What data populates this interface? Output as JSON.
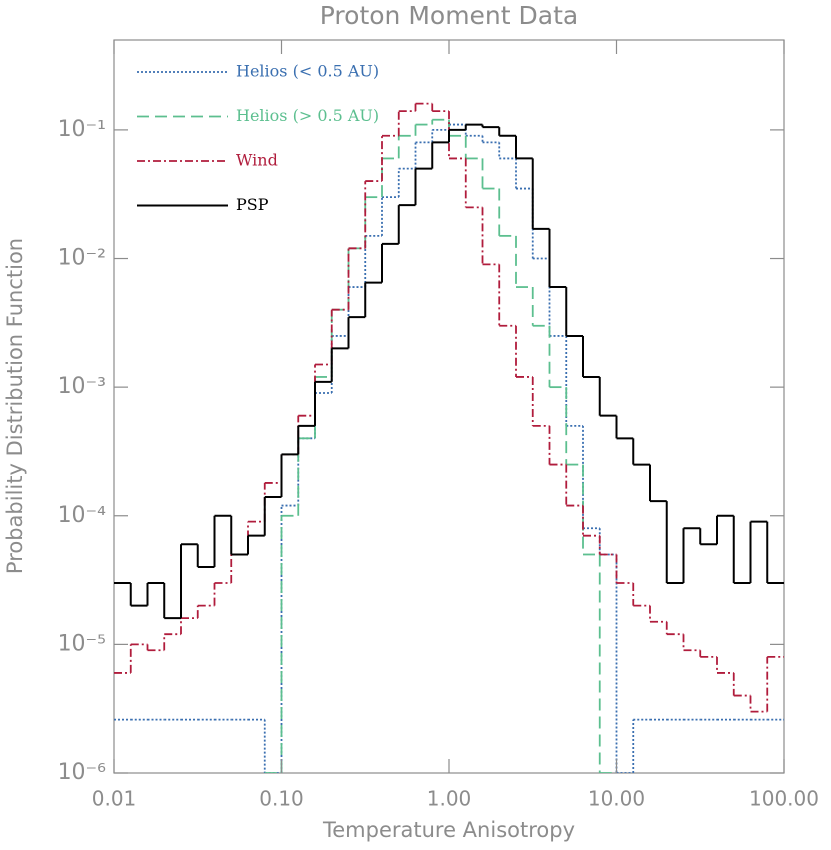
{
  "chart_data": {
    "type": "histogram",
    "title": "Proton Moment Data",
    "xlabel": "Temperature Anisotropy",
    "ylabel": "Probability Distribution Function",
    "xlog": true,
    "ylog": true,
    "legend": "upper left",
    "xlim": [
      0.01,
      100
    ],
    "ylim": [
      1e-06,
      0.5
    ],
    "xticks": [
      0.01,
      {
        "value": 0.1,
        "label": "0.10"
      },
      {
        "value": 1,
        "label": "1.00"
      },
      {
        "value": 10,
        "label": "10.00"
      },
      {
        "value": 100,
        "label": "100.00"
      }
    ],
    "yticks": [
      {
        "value": 1e-06,
        "label": "10⁻⁶"
      },
      {
        "value": 1e-05,
        "label": "10⁻⁵"
      },
      {
        "value": 0.0001,
        "label": "10⁻⁴"
      },
      {
        "value": 0.001,
        "label": "10⁻³"
      },
      {
        "value": 0.01,
        "label": "10⁻²"
      },
      {
        "value": 0.1,
        "label": "10⁻¹"
      }
    ],
    "bins": [
      0.01,
      0.01259,
      0.01585,
      0.01995,
      0.02512,
      0.03162,
      0.03981,
      0.05012,
      0.0631,
      0.07943,
      0.1,
      0.1259,
      0.1585,
      0.1995,
      0.2512,
      0.3162,
      0.3981,
      0.5012,
      0.631,
      0.7943,
      1,
      1.259,
      1.585,
      1.995,
      2.512,
      3.162,
      3.981,
      5.012,
      6.31,
      7.943,
      10,
      12.59,
      15.85,
      19.95,
      25.12,
      31.62,
      39.81,
      50.12,
      63.1,
      79.43,
      100
    ],
    "series": [
      {
        "name": "Helios (< 0.5 AU)",
        "color": "#3a6fb0",
        "dash": "dotted",
        "values": [
          2.6e-06,
          2.6e-06,
          2.6e-06,
          2.6e-06,
          2.6e-06,
          2.6e-06,
          2.6e-06,
          2.6e-06,
          2.6e-06,
          1e-06,
          0.00012,
          0.0004,
          0.0009,
          0.0025,
          0.006,
          0.015,
          0.03,
          0.05,
          0.08,
          0.1,
          0.11,
          0.09,
          0.08,
          0.06,
          0.035,
          0.01,
          0.0025,
          0.0005,
          8e-05,
          5e-05,
          1e-06,
          2.6e-06,
          2.6e-06,
          2.6e-06,
          2.6e-06,
          2.6e-06,
          2.6e-06,
          2.6e-06,
          2.6e-06,
          2.6e-06
        ]
      },
      {
        "name": "Helios (> 0.5 AU)",
        "color": "#5cbf8f",
        "dash": "dashed",
        "values": [
          null,
          null,
          null,
          null,
          null,
          null,
          null,
          null,
          null,
          1e-06,
          0.0001,
          0.0004,
          0.0012,
          0.004,
          0.012,
          0.03,
          0.06,
          0.09,
          0.11,
          0.12,
          0.09,
          0.06,
          0.035,
          0.015,
          0.006,
          0.003,
          0.001,
          0.00025,
          5e-05,
          1e-06,
          null,
          null,
          null,
          null,
          null,
          null,
          null,
          null,
          null,
          null
        ]
      },
      {
        "name": "Wind",
        "color": "#b01c3c",
        "dash": "dashdot",
        "values": [
          6e-06,
          1e-05,
          9e-06,
          1.2e-05,
          1.6e-05,
          2e-05,
          3e-05,
          5e-05,
          9e-05,
          0.00018,
          0.0003,
          0.0006,
          0.0015,
          0.004,
          0.012,
          0.04,
          0.09,
          0.14,
          0.16,
          0.14,
          0.06,
          0.025,
          0.009,
          0.003,
          0.0012,
          0.0005,
          0.00025,
          0.00012,
          7e-05,
          5e-05,
          3e-05,
          2e-05,
          1.5e-05,
          1.2e-05,
          9e-06,
          8e-06,
          6e-06,
          4e-06,
          3e-06,
          8e-06
        ]
      },
      {
        "name": "PSP",
        "color": "#000000",
        "dash": "solid",
        "values": [
          3e-05,
          2e-05,
          3e-05,
          1.6e-05,
          6e-05,
          4e-05,
          0.0001,
          5e-05,
          7e-05,
          0.00014,
          0.0003,
          0.0005,
          0.0011,
          0.002,
          0.0035,
          0.0065,
          0.013,
          0.026,
          0.05,
          0.08,
          0.1,
          0.11,
          0.105,
          0.09,
          0.06,
          0.017,
          0.006,
          0.0025,
          0.0012,
          0.0006,
          0.0004,
          0.00025,
          0.00013,
          3e-05,
          8e-05,
          6e-05,
          0.0001,
          3e-05,
          9e-05,
          3e-05
        ]
      }
    ]
  }
}
